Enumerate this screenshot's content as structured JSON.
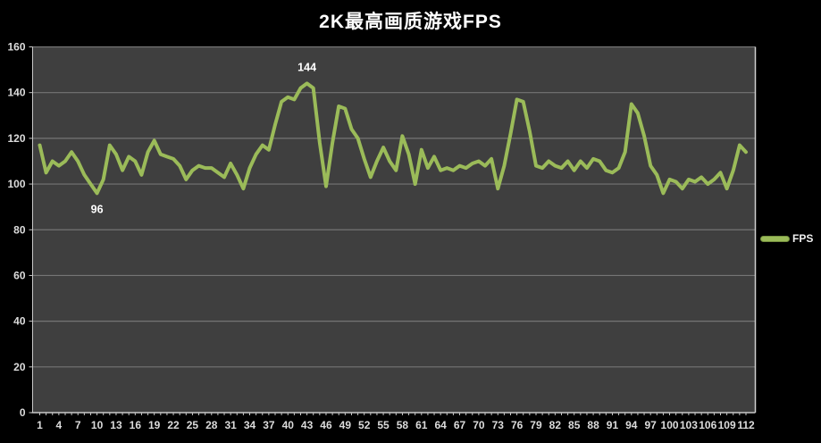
{
  "colors": {
    "background": "#000000",
    "plot_background": "#3f3f3f",
    "gridline": "#757575",
    "axis_line": "#c8c8c8",
    "plot_border_top": "#7a7a7a",
    "plot_border_right": "#d0d0d0",
    "line": "#9bbb59",
    "tick_label": "#dcdcdc",
    "data_label": "#ffffff",
    "title_text": "#ffffff"
  },
  "legend": {
    "position": "right"
  },
  "chart_data": {
    "type": "line",
    "title": "2K最高画质游戏FPS",
    "xlabel": "",
    "ylabel": "",
    "ylim": [
      0,
      160
    ],
    "y_tick_step": 20,
    "grid": true,
    "legend_position": "right",
    "x": [
      1,
      2,
      3,
      4,
      5,
      6,
      7,
      8,
      9,
      10,
      11,
      12,
      13,
      14,
      15,
      16,
      17,
      18,
      19,
      20,
      21,
      22,
      23,
      24,
      25,
      26,
      27,
      28,
      29,
      30,
      31,
      32,
      33,
      34,
      35,
      36,
      37,
      38,
      39,
      40,
      41,
      42,
      43,
      44,
      45,
      46,
      47,
      48,
      49,
      50,
      51,
      52,
      53,
      54,
      55,
      56,
      57,
      58,
      59,
      60,
      61,
      62,
      63,
      64,
      65,
      66,
      67,
      68,
      69,
      70,
      71,
      72,
      73,
      74,
      75,
      76,
      77,
      78,
      79,
      80,
      81,
      82,
      83,
      84,
      85,
      86,
      87,
      88,
      89,
      90,
      91,
      92,
      93,
      94,
      95,
      96,
      97,
      98,
      99,
      100,
      101,
      102,
      103,
      104,
      105,
      106,
      107,
      108,
      109,
      110,
      111,
      112
    ],
    "series": [
      {
        "name": "FPS",
        "values": [
          117,
          105,
          110,
          108,
          110,
          114,
          110,
          104,
          100,
          96,
          102,
          117,
          113,
          106,
          112,
          110,
          104,
          114,
          119,
          113,
          112,
          111,
          108,
          102,
          106,
          108,
          107,
          107,
          105,
          103,
          109,
          104,
          98,
          107,
          113,
          117,
          115,
          126,
          136,
          138,
          137,
          142,
          144,
          142,
          118,
          99,
          118,
          134,
          133,
          124,
          120,
          111,
          103,
          110,
          116,
          110,
          106,
          121,
          113,
          100,
          115,
          107,
          112,
          106,
          107,
          106,
          108,
          107,
          109,
          110,
          108,
          111,
          98,
          108,
          122,
          137,
          136,
          123,
          108,
          107,
          110,
          108,
          107,
          110,
          106,
          110,
          107,
          111,
          110,
          106,
          105,
          107,
          114,
          135,
          131,
          121,
          108,
          104,
          96,
          102,
          101,
          98,
          102,
          101,
          103,
          100,
          102,
          105,
          98,
          106,
          117,
          114
        ]
      }
    ],
    "x_tick_labels": [
      "1",
      "4",
      "7",
      "10",
      "13",
      "16",
      "19",
      "22",
      "25",
      "28",
      "31",
      "34",
      "37",
      "40",
      "43",
      "46",
      "49",
      "52",
      "55",
      "58",
      "61",
      "64",
      "67",
      "70",
      "73",
      "76",
      "79",
      "82",
      "85",
      "88",
      "91",
      "94",
      "97",
      "100",
      "103",
      "106",
      "109",
      "112"
    ],
    "x_tick_interval": 3,
    "y_tick_labels": [
      "0",
      "20",
      "40",
      "60",
      "80",
      "100",
      "120",
      "140",
      "160"
    ],
    "annotations": [
      {
        "point": 10,
        "value": 96,
        "label": "96",
        "placement": "below"
      },
      {
        "point": 43,
        "value": 144,
        "label": "144",
        "placement": "above"
      }
    ]
  }
}
